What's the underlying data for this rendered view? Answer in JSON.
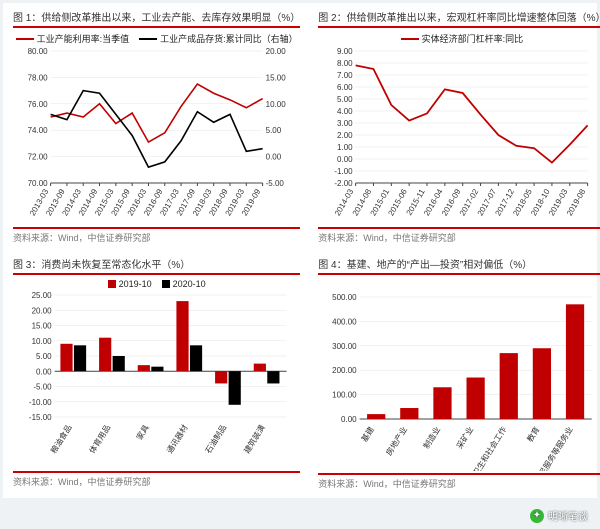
{
  "colors": {
    "accent": "#c00000",
    "black": "#000",
    "grid": "#d0d0d0",
    "axis": "#444"
  },
  "source_text": "资料来源：Wind，中信证券研究部",
  "watermark": "明晰笔谈",
  "panels": {
    "p1": {
      "title": "图 1：供给侧改革推出以来，工业去产能、去库存效果明显（%）",
      "type": "dual-line",
      "legend": [
        {
          "label": "工业产能利用率:当季值",
          "color": "#c00000"
        },
        {
          "label": "工业产成品存货:累计同比（右轴）",
          "color": "#000"
        }
      ],
      "x": [
        "2013-03",
        "2013-09",
        "2014-03",
        "2014-09",
        "2015-03",
        "2015-09",
        "2016-03",
        "2016-09",
        "2017-03",
        "2017-09",
        "2018-03",
        "2018-09",
        "2019-03",
        "2019-09"
      ],
      "yL": {
        "lim": [
          70,
          80
        ],
        "step": 2,
        "ticks": [
          70,
          72,
          74,
          76,
          78,
          80
        ]
      },
      "yR": {
        "lim": [
          -5,
          20
        ],
        "step": 5,
        "ticks": [
          -5,
          0,
          5,
          10,
          15,
          20
        ]
      },
      "series": [
        {
          "axis": "L",
          "color": "#c00000",
          "width": 1.6,
          "values": [
            75.0,
            75.3,
            75.0,
            76.0,
            74.5,
            75.3,
            73.1,
            73.8,
            75.8,
            77.5,
            76.8,
            76.3,
            75.7,
            76.4
          ]
        },
        {
          "axis": "R",
          "color": "#000",
          "width": 1.6,
          "values": [
            8.0,
            7.0,
            12.5,
            12.0,
            8.0,
            4.0,
            -2.0,
            -1.0,
            3.0,
            8.5,
            6.5,
            8.0,
            1.0,
            1.5
          ]
        }
      ]
    },
    "p2": {
      "title": "图 2：供给侧改革推出以来，宏观杠杆率同比增速整体回落（%）",
      "type": "line",
      "legend": [
        {
          "label": "实体经济部门杠杆率:同比",
          "color": "#c00000"
        }
      ],
      "x": [
        "2014-03",
        "2014-08",
        "2015-01",
        "2015-06",
        "2015-11",
        "2016-04",
        "2016-09",
        "2017-02",
        "2017-07",
        "2017-12",
        "2018-05",
        "2018-10",
        "2019-03",
        "2019-08"
      ],
      "yL": {
        "lim": [
          -2,
          9
        ],
        "step": 1,
        "ticks": [
          -2,
          -1,
          0,
          1,
          2,
          3,
          4,
          5,
          6,
          7,
          8,
          9
        ]
      },
      "series": [
        {
          "axis": "L",
          "color": "#c00000",
          "width": 1.8,
          "values": [
            7.8,
            7.5,
            4.5,
            3.2,
            3.8,
            5.8,
            5.5,
            3.7,
            2.0,
            1.1,
            0.9,
            -0.3,
            1.2,
            2.8
          ]
        }
      ]
    },
    "p3": {
      "title": "图 3：消费尚未恢复至常态化水平（%）",
      "type": "grouped-bar",
      "legend": [
        {
          "label": "2019-10",
          "color": "#c00000"
        },
        {
          "label": "2020-10",
          "color": "#000"
        }
      ],
      "x": [
        "粮油食品",
        "体育用品",
        "家具",
        "通讯器材",
        "石油制品",
        "建筑装潢"
      ],
      "yL": {
        "lim": [
          -15,
          25
        ],
        "step": 5,
        "ticks": [
          -15,
          -10,
          -5,
          0,
          5,
          10,
          15,
          20,
          25
        ]
      },
      "groups": [
        {
          "color": "#c00000",
          "values": [
            9.0,
            11.0,
            2.0,
            23.0,
            -4.0,
            2.5
          ]
        },
        {
          "color": "#000",
          "values": [
            8.5,
            5.0,
            1.5,
            8.5,
            -11.0,
            -4.0
          ]
        }
      ],
      "bar_width": 0.35
    },
    "p4": {
      "title": "图 4：基建、地产的“产出—投资”相对偏低（%）",
      "type": "bar",
      "legend": [],
      "x": [
        "基建",
        "房地产业",
        "制造业",
        "采矿业",
        "卫生和社会工作",
        "教育",
        "居民服务等服务业"
      ],
      "yL": {
        "lim": [
          0,
          500
        ],
        "step": 100,
        "ticks": [
          0,
          100,
          200,
          300,
          400,
          500
        ]
      },
      "series": [
        {
          "color": "#c00000",
          "values": [
            20,
            45,
            130,
            170,
            270,
            290,
            470
          ]
        }
      ],
      "bar_width": 0.55
    }
  }
}
